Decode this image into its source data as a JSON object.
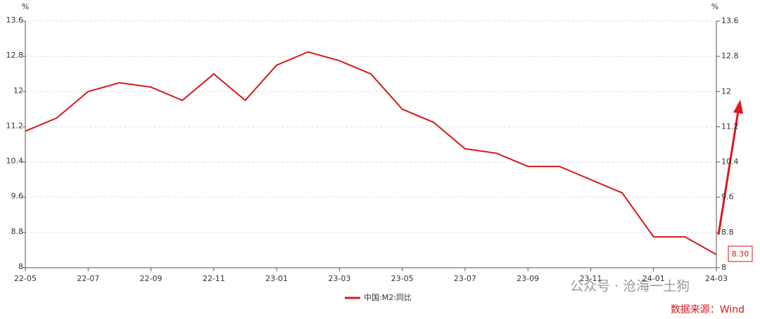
{
  "chart_data": {
    "type": "line",
    "y_unit": "%",
    "y2_unit": "%",
    "categories": [
      "22-05",
      null,
      "22-07",
      null,
      "22-09",
      null,
      "22-11",
      null,
      "23-01",
      null,
      "23-03",
      null,
      "23-05",
      null,
      "23-07",
      null,
      "23-09",
      null,
      "23-11",
      null,
      "24-01",
      null,
      "24-03"
    ],
    "series": [
      {
        "name": "中国:M2:同比",
        "color": "#d7191c",
        "values": [
          11.1,
          11.4,
          12.0,
          12.2,
          12.1,
          11.8,
          12.4,
          11.8,
          12.6,
          12.9,
          12.7,
          12.4,
          11.6,
          11.3,
          10.7,
          10.6,
          10.3,
          10.3,
          10.0,
          9.7,
          8.7,
          8.7,
          8.3
        ],
        "value_labels": [
          null,
          null,
          null,
          null,
          null,
          null,
          null,
          null,
          null,
          null,
          null,
          null,
          null,
          null,
          null,
          null,
          null,
          null,
          null,
          null,
          null,
          null,
          "8.30"
        ]
      }
    ],
    "ylim": [
      8,
      13.6
    ],
    "yticks": [
      8,
      8.8,
      9.6,
      10.4,
      11.2,
      12,
      12.8,
      13.6
    ],
    "y2lim": [
      8,
      13.6
    ],
    "y2ticks": [
      8,
      8.8,
      9.6,
      10.4,
      11.2,
      12,
      12.8,
      13.6
    ],
    "grid": true,
    "legend": "bottom",
    "watermark": "公众号 · 沧海一土狗",
    "source": "数据来源：Wind"
  }
}
